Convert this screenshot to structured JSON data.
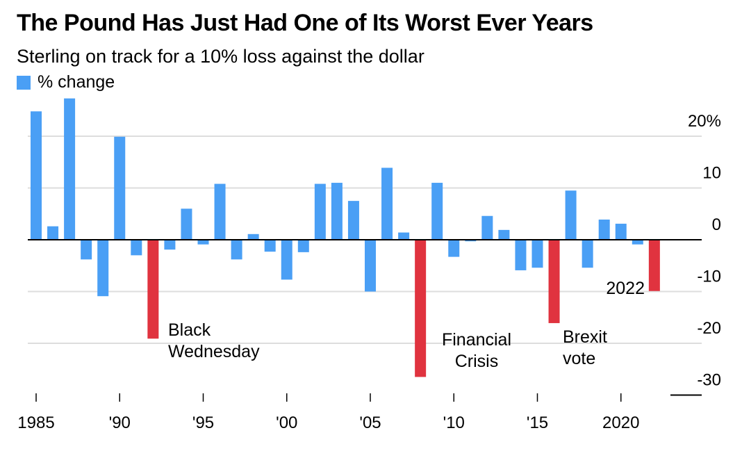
{
  "title": "The Pound Has Just Had One of Its Worst Ever Years",
  "subtitle": "Sterling on track for a 10% loss against the dollar",
  "colors": {
    "normal": "#4a9ff5",
    "highlight": "#e0333f",
    "grid": "#dddddd",
    "axis": "#000000"
  },
  "chart_data": {
    "type": "bar",
    "title": "The Pound Has Just Had One of Its Worst Ever Years",
    "subtitle": "Sterling on track for a 10% loss against the dollar",
    "legend": [
      "% change"
    ],
    "x": [
      1985,
      1986,
      1987,
      1988,
      1989,
      1990,
      1991,
      1992,
      1993,
      1994,
      1995,
      1996,
      1997,
      1998,
      1999,
      2000,
      2001,
      2002,
      2003,
      2004,
      2005,
      2006,
      2007,
      2008,
      2009,
      2010,
      2011,
      2012,
      2013,
      2014,
      2015,
      2016,
      2017,
      2018,
      2019,
      2020,
      2021,
      2022
    ],
    "values": [
      24.8,
      2.6,
      27.3,
      -3.8,
      -10.9,
      19.9,
      -3.0,
      -19.1,
      -1.9,
      6.0,
      -0.9,
      10.8,
      -3.8,
      1.1,
      -2.3,
      -7.7,
      -2.4,
      10.8,
      11.0,
      7.5,
      -10.0,
      13.9,
      1.4,
      -26.5,
      11.0,
      -3.3,
      -0.3,
      4.6,
      1.9,
      -5.9,
      -5.4,
      -16.1,
      9.5,
      -5.4,
      3.9,
      3.1,
      -0.9,
      -9.9
    ]
  },
  "highlight_years": [
    1992,
    2008,
    2016,
    2022
  ],
  "y_axis": {
    "min": -30,
    "max": 25,
    "ticks": [
      20,
      10,
      0,
      -10,
      -20,
      -30
    ],
    "tick_labels": [
      "20%",
      "10",
      "0",
      "-10",
      "-20",
      "-30"
    ]
  },
  "x_axis": {
    "ticks": [
      1985,
      1990,
      1995,
      2000,
      2005,
      2010,
      2015,
      2020
    ],
    "tick_labels": [
      "1985",
      "'90",
      "'95",
      "'00",
      "'05",
      "'10",
      "'15",
      "2020"
    ]
  },
  "annotations": [
    {
      "id": "black-wednesday",
      "year": 1992,
      "lines": [
        "Black",
        "Wednesday"
      ]
    },
    {
      "id": "financial-crisis",
      "year": 2008,
      "lines": [
        "Financial",
        "Crisis"
      ]
    },
    {
      "id": "brexit-vote",
      "year": 2016,
      "lines": [
        "Brexit",
        "vote"
      ]
    },
    {
      "id": "year-2022",
      "year": 2022,
      "lines": [
        "2022"
      ]
    }
  ]
}
